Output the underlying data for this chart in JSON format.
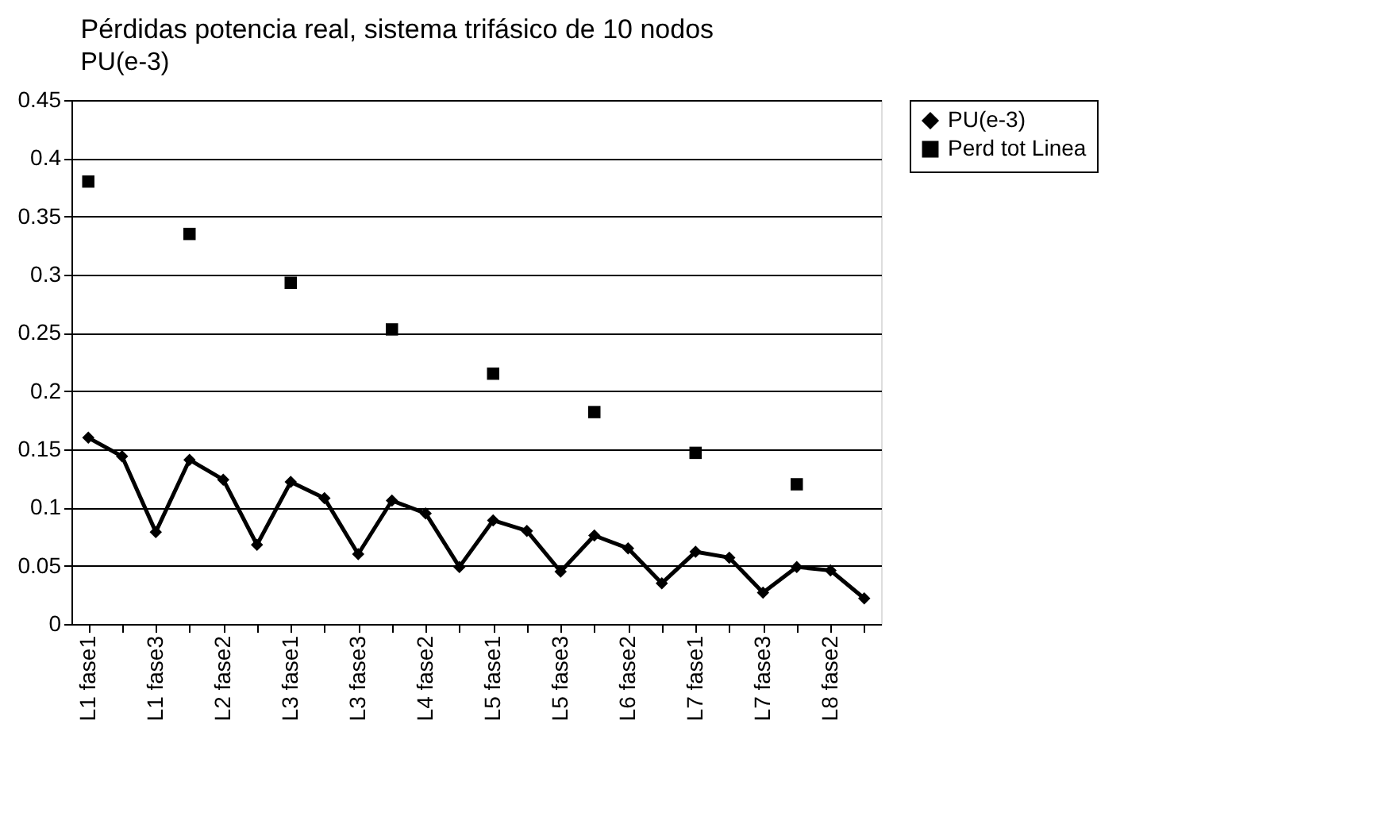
{
  "chart_data": {
    "type": "line",
    "title": "Pérdidas potencia real, sistema trifásico de 10 nodos",
    "ylabel": "PU(e-3)",
    "categories": [
      "L1 fase1",
      null,
      "L1 fase3",
      null,
      "L2 fase2",
      null,
      "L3 fase1",
      null,
      "L3 fase3",
      null,
      "L4 fase2",
      null,
      "L5 fase1",
      null,
      "L5 fase3",
      null,
      "L6 fase2",
      null,
      "L7 fase1",
      null,
      "L7 fase3",
      null,
      "L8 fase2",
      null
    ],
    "series": [
      {
        "name": "PU(e-3)",
        "color": "#000000",
        "marker": "diamond",
        "values": [
          0.16,
          0.144,
          0.079,
          0.141,
          0.124,
          0.068,
          0.122,
          0.108,
          0.06,
          0.106,
          0.095,
          0.049,
          0.089,
          0.08,
          0.045,
          0.076,
          0.065,
          0.035,
          0.062,
          0.057,
          0.027,
          0.049,
          0.046,
          0.022
        ]
      },
      {
        "name": "Perd tot Linea",
        "color": "#000000",
        "marker": "square",
        "values": [
          0.38,
          null,
          null,
          0.335,
          null,
          null,
          0.293,
          null,
          null,
          0.253,
          null,
          null,
          0.215,
          null,
          null,
          0.182,
          null,
          null,
          0.147,
          null,
          null,
          0.12,
          null,
          null
        ]
      }
    ],
    "ylim": [
      0,
      0.45
    ],
    "yticks": [
      0,
      0.05,
      0.1,
      0.15,
      0.2,
      0.25,
      0.3,
      0.35,
      0.4,
      0.45
    ],
    "grid": "y",
    "legend": "right",
    "line_style": "solid"
  }
}
